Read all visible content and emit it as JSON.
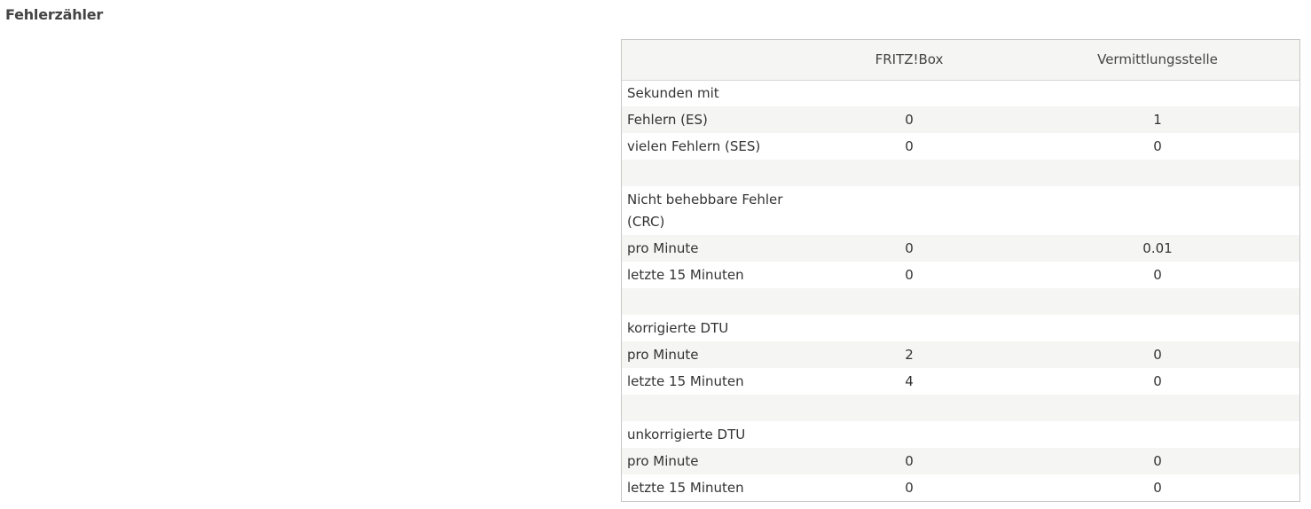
{
  "section_title": "Fehlerzähler",
  "table": {
    "headers": [
      "",
      "FRITZ!Box",
      "Vermittlungsstelle"
    ],
    "rows": [
      {
        "label": "Sekunden mit",
        "fritzbox": "",
        "vermittlungsstelle": ""
      },
      {
        "label": "Fehlern (ES)",
        "fritzbox": "0",
        "vermittlungsstelle": "1"
      },
      {
        "label": "vielen Fehlern (SES)",
        "fritzbox": "0",
        "vermittlungsstelle": "0"
      },
      {
        "label": "",
        "fritzbox": "",
        "vermittlungsstelle": ""
      },
      {
        "label": "Nicht behebbare Fehler (CRC)",
        "fritzbox": "",
        "vermittlungsstelle": ""
      },
      {
        "label": "pro Minute",
        "fritzbox": "0",
        "vermittlungsstelle": "0.01"
      },
      {
        "label": "letzte 15 Minuten",
        "fritzbox": "0",
        "vermittlungsstelle": "0"
      },
      {
        "label": "",
        "fritzbox": "",
        "vermittlungsstelle": ""
      },
      {
        "label": "korrigierte DTU",
        "fritzbox": "",
        "vermittlungsstelle": ""
      },
      {
        "label": "pro Minute",
        "fritzbox": "2",
        "vermittlungsstelle": "0"
      },
      {
        "label": "letzte 15 Minuten",
        "fritzbox": "4",
        "vermittlungsstelle": "0"
      },
      {
        "label": "",
        "fritzbox": "",
        "vermittlungsstelle": ""
      },
      {
        "label": "unkorrigierte DTU",
        "fritzbox": "",
        "vermittlungsstelle": ""
      },
      {
        "label": "pro Minute",
        "fritzbox": "0",
        "vermittlungsstelle": "0"
      },
      {
        "label": "letzte 15 Minuten",
        "fritzbox": "0",
        "vermittlungsstelle": "0"
      }
    ]
  },
  "colors": {
    "header_background": "#f5f5f3",
    "stripe_background": "#f5f5f3",
    "border": "#c7c7c7",
    "text": "#333333"
  }
}
